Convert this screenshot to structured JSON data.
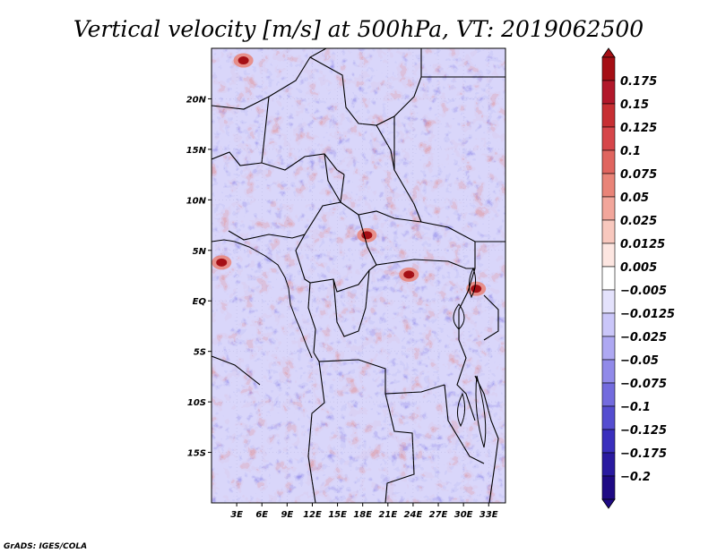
{
  "title": "Vertical velocity [m/s] at 500hPa, VT: 2019062500",
  "credit": "GrADS: IGES/COLA",
  "map": {
    "lon_range": [
      0,
      35
    ],
    "lat_range": [
      -20,
      25
    ],
    "lat_ticks": [
      {
        "value": 20,
        "label": "20N"
      },
      {
        "value": 15,
        "label": "15N"
      },
      {
        "value": 10,
        "label": "10N"
      },
      {
        "value": 5,
        "label": "5N"
      },
      {
        "value": 0,
        "label": "EQ"
      },
      {
        "value": -5,
        "label": "5S"
      },
      {
        "value": -10,
        "label": "10S"
      },
      {
        "value": -15,
        "label": "15S"
      }
    ],
    "lon_ticks": [
      {
        "value": 3,
        "label": "3E"
      },
      {
        "value": 6,
        "label": "6E"
      },
      {
        "value": 9,
        "label": "9E"
      },
      {
        "value": 12,
        "label": "12E"
      },
      {
        "value": 15,
        "label": "15E"
      },
      {
        "value": 18,
        "label": "18E"
      },
      {
        "value": 21,
        "label": "21E"
      },
      {
        "value": 24,
        "label": "24E"
      },
      {
        "value": 27,
        "label": "27E"
      },
      {
        "value": 30,
        "label": "30E"
      },
      {
        "value": 33,
        "label": "33E"
      }
    ],
    "strong_updrafts": [
      {
        "lon": 18.5,
        "lat": 6.5
      },
      {
        "lon": 23.5,
        "lat": 2.6
      },
      {
        "lon": 3.8,
        "lat": 23.8
      },
      {
        "lon": 1.2,
        "lat": 3.8
      },
      {
        "lon": 31.5,
        "lat": 1.2
      }
    ],
    "line_color": "#000000"
  },
  "colorbar": {
    "levels": [
      "0.175",
      "0.15",
      "0.125",
      "0.1",
      "0.075",
      "0.05",
      "0.025",
      "0.0125",
      "0.005",
      "−0.005",
      "−0.0125",
      "−0.025",
      "−0.05",
      "−0.075",
      "−0.1",
      "−0.125",
      "−0.175",
      "−0.2"
    ],
    "colors": [
      "#a50f15",
      "#b2182b",
      "#c72f33",
      "#d6464a",
      "#e0655f",
      "#e98478",
      "#f2a69b",
      "#f8c8be",
      "#fde6e1",
      "#ffffff",
      "#e4e2fc",
      "#cac6f9",
      "#aea8f2",
      "#918ae9",
      "#736bde",
      "#554dd0",
      "#3a2fbd",
      "#2a1aa0",
      "#1f0a84"
    ],
    "under_color": "#1f0a84",
    "over_color": "#a50f15"
  }
}
